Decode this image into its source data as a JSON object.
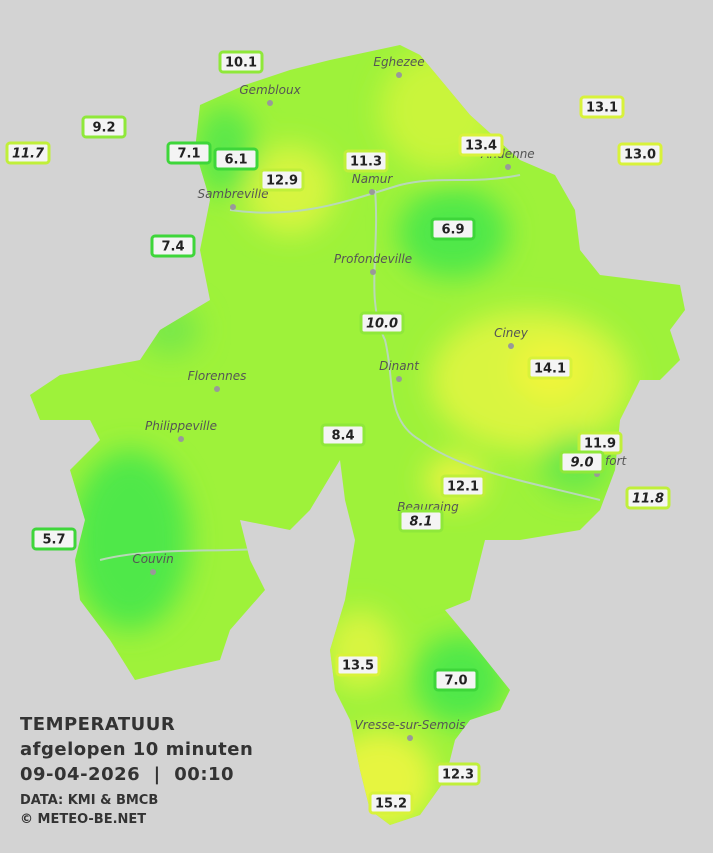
{
  "title": {
    "line1": "TEMPERATUUR",
    "line2": "afgelopen 10 minuten",
    "line3": "09-04-2026  |  00:10",
    "source": "DATA: KMI & BMCB",
    "copyright": "© METEO-BE.NET"
  },
  "places": [
    "Eghezee",
    "Gembloux",
    "Andenne",
    "Namur",
    "Sambreville",
    "Profondeville",
    "Ciney",
    "Dinant",
    "Florennes",
    "Philippeville",
    "Rochefort",
    "Beauraing",
    "Couvin",
    "Vresse-sur-Semois"
  ],
  "stations": [
    {
      "value": "10.1"
    },
    {
      "value": "9.2"
    },
    {
      "value": "11.7",
      "italic": true
    },
    {
      "value": "7.1"
    },
    {
      "value": "6.1"
    },
    {
      "value": "12.9"
    },
    {
      "value": "11.3"
    },
    {
      "value": "13.4"
    },
    {
      "value": "13.1"
    },
    {
      "value": "13.0"
    },
    {
      "value": "7.4"
    },
    {
      "value": "6.9"
    },
    {
      "value": "10.0",
      "italic": true
    },
    {
      "value": "14.1"
    },
    {
      "value": "8.4"
    },
    {
      "value": "11.9"
    },
    {
      "value": "9.0",
      "italic": true
    },
    {
      "value": "12.1"
    },
    {
      "value": "11.8",
      "italic": true
    },
    {
      "value": "8.1",
      "italic": true
    },
    {
      "value": "5.7"
    },
    {
      "value": "13.5"
    },
    {
      "value": "7.0"
    },
    {
      "value": "12.3"
    },
    {
      "value": "15.2"
    }
  ]
}
